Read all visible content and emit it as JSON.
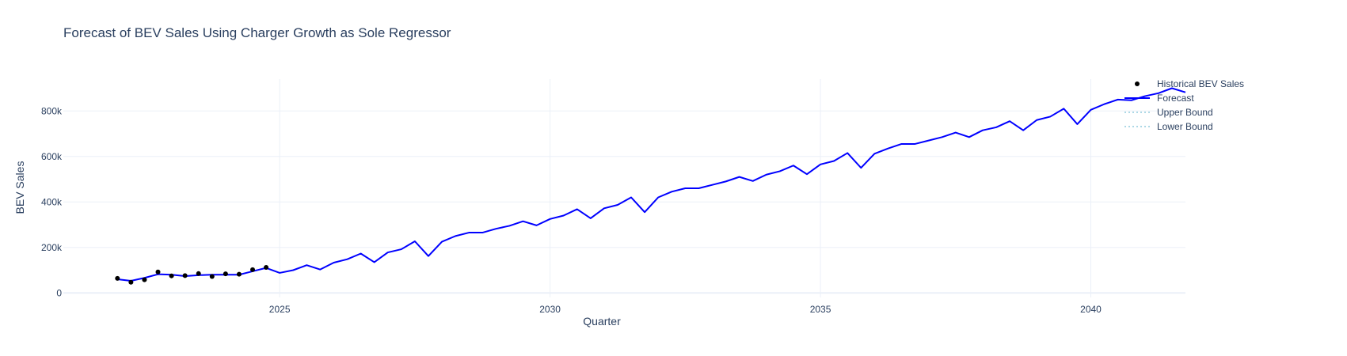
{
  "chart_data": {
    "type": "line",
    "title": "Forecast of BEV Sales Using Charger Growth as Sole Regressor",
    "xlabel": "Quarter",
    "ylabel": "BEV Sales",
    "xlim": [
      2021.0,
      2041.75
    ],
    "ylim": [
      -20000,
      940000
    ],
    "x_ticks": [
      {
        "value": 2025,
        "label": "2025"
      },
      {
        "value": 2030,
        "label": "2030"
      },
      {
        "value": 2035,
        "label": "2035"
      },
      {
        "value": 2040,
        "label": "2040"
      }
    ],
    "y_ticks": [
      {
        "value": 0,
        "label": "0"
      },
      {
        "value": 200000,
        "label": "200k"
      },
      {
        "value": 400000,
        "label": "400k"
      },
      {
        "value": 600000,
        "label": "600k"
      },
      {
        "value": 800000,
        "label": "800k"
      }
    ],
    "grid": true,
    "legend_position": "top-right",
    "legend": [
      {
        "name": "Historical BEV Sales",
        "kind": "marker",
        "color": "#000000"
      },
      {
        "name": "Forecast",
        "kind": "line",
        "color": "#0000ff"
      },
      {
        "name": "Upper Bound",
        "kind": "dot",
        "color": "#add8e6"
      },
      {
        "name": "Lower Bound",
        "kind": "dot",
        "color": "#add8e6"
      }
    ],
    "series": [
      {
        "name": "Historical BEV Sales",
        "mode": "markers",
        "color": "#000000",
        "x": [
          2022.0,
          2022.25,
          2022.5,
          2022.75,
          2023.0,
          2023.25,
          2023.5,
          2023.75,
          2024.0,
          2024.25,
          2024.5,
          2024.75
        ],
        "y": [
          64000,
          47000,
          58000,
          92000,
          75000,
          76000,
          85000,
          72000,
          84000,
          82000,
          102000,
          112000
        ]
      },
      {
        "name": "Forecast",
        "mode": "lines",
        "color": "#0000ff",
        "x": [
          2022.0,
          2022.25,
          2022.5,
          2022.75,
          2023.0,
          2023.25,
          2023.5,
          2023.75,
          2024.0,
          2024.25,
          2024.5,
          2024.75,
          2025.0,
          2025.25,
          2025.5,
          2025.75,
          2026.0,
          2026.25,
          2026.5,
          2026.75,
          2027.0,
          2027.25,
          2027.5,
          2027.75,
          2028.0,
          2028.25,
          2028.5,
          2028.75,
          2029.0,
          2029.25,
          2029.5,
          2029.75,
          2030.0,
          2030.25,
          2030.5,
          2030.75,
          2031.0,
          2031.25,
          2031.5,
          2031.75,
          2032.0,
          2032.25,
          2032.5,
          2032.75,
          2033.0,
          2033.25,
          2033.5,
          2033.75,
          2034.0,
          2034.25,
          2034.5,
          2034.75,
          2035.0,
          2035.25,
          2035.5,
          2035.75,
          2036.0,
          2036.25,
          2036.5,
          2036.75,
          2037.0,
          2037.25,
          2037.5,
          2037.75,
          2038.0,
          2038.25,
          2038.5,
          2038.75,
          2039.0,
          2039.25,
          2039.5,
          2039.75,
          2040.0,
          2040.25,
          2040.5,
          2040.75,
          2041.0,
          2041.25,
          2041.5,
          2041.75
        ],
        "y": [
          60000,
          53000,
          66000,
          82000,
          80000,
          74000,
          78000,
          80000,
          80000,
          80000,
          95000,
          110000,
          88000,
          100000,
          122000,
          103000,
          133000,
          148000,
          173000,
          135000,
          178000,
          192000,
          227000,
          162000,
          225000,
          250000,
          265000,
          265000,
          282000,
          295000,
          315000,
          297000,
          325000,
          340000,
          368000,
          328000,
          372000,
          387000,
          420000,
          355000,
          420000,
          445000,
          460000,
          460000,
          475000,
          490000,
          510000,
          492000,
          520000,
          535000,
          560000,
          522000,
          565000,
          580000,
          615000,
          550000,
          612000,
          635000,
          655000,
          655000,
          670000,
          685000,
          705000,
          685000,
          715000,
          728000,
          755000,
          715000,
          760000,
          775000,
          810000,
          742000,
          805000,
          830000,
          850000,
          847000,
          865000,
          878000,
          900000,
          882000
        ]
      }
    ]
  }
}
